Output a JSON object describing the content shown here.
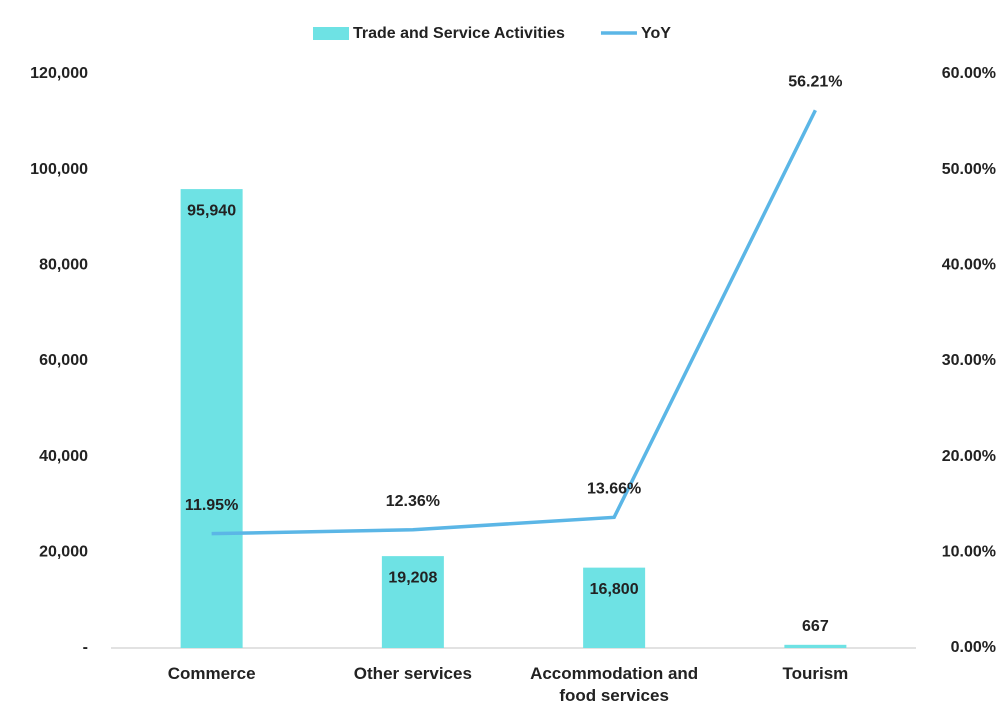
{
  "chart_data": {
    "type": "bar-line",
    "categories": [
      "Commerce",
      "Other services",
      "Accommodation and food services",
      "Tourism"
    ],
    "series": [
      {
        "name": "Trade and Service Activities",
        "type": "bar",
        "color": "#6ee2e4",
        "values": [
          95940,
          19208,
          16800,
          667
        ],
        "value_labels": [
          "95,940",
          "19,208",
          "16,800",
          "667"
        ]
      },
      {
        "name": "YoY",
        "type": "line",
        "axis": "y2",
        "color": "#5bb6e6",
        "values": [
          11.95,
          12.36,
          13.66,
          56.21
        ],
        "value_labels": [
          "11.95%",
          "12.36%",
          "13.66%",
          "56.21%"
        ]
      }
    ],
    "ylim": [
      0,
      120000
    ],
    "yticks": [
      {
        "value": 0,
        "label": "-"
      },
      {
        "value": 20000,
        "label": "20,000"
      },
      {
        "value": 40000,
        "label": "40,000"
      },
      {
        "value": 60000,
        "label": "60,000"
      },
      {
        "value": 80000,
        "label": "80,000"
      },
      {
        "value": 100000,
        "label": "100,000"
      },
      {
        "value": 120000,
        "label": "120,000"
      }
    ],
    "y2lim": [
      0,
      60
    ],
    "y2ticks": [
      {
        "value": 0,
        "label": "0.00%"
      },
      {
        "value": 10,
        "label": "10.00%"
      },
      {
        "value": 20,
        "label": "20.00%"
      },
      {
        "value": 30,
        "label": "30.00%"
      },
      {
        "value": 40,
        "label": "40.00%"
      },
      {
        "value": 50,
        "label": "50.00%"
      },
      {
        "value": 60,
        "label": "60.00%"
      }
    ],
    "legend": "top"
  }
}
